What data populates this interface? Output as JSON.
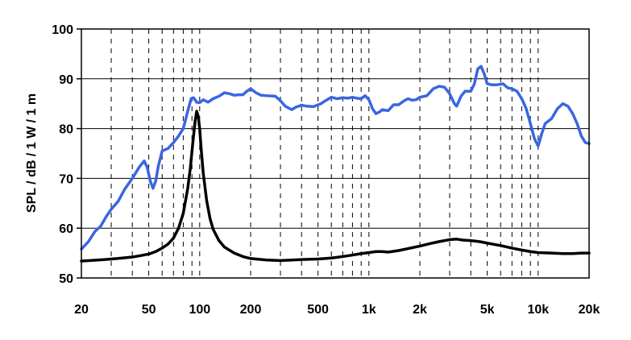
{
  "chart_data": {
    "type": "line",
    "title": "",
    "xlabel": "",
    "ylabel": "SPL / dB / 1 W / 1 m",
    "x_scale": "log",
    "xlim": [
      20,
      20000
    ],
    "ylim": [
      50,
      100
    ],
    "x_ticks": [
      {
        "value": 20,
        "label": "20"
      },
      {
        "value": 50,
        "label": "50"
      },
      {
        "value": 100,
        "label": "100"
      },
      {
        "value": 200,
        "label": "200"
      },
      {
        "value": 500,
        "label": "500"
      },
      {
        "value": 1000,
        "label": "1k"
      },
      {
        "value": 2000,
        "label": "2k"
      },
      {
        "value": 5000,
        "label": "5k"
      },
      {
        "value": 10000,
        "label": "10k"
      },
      {
        "value": 20000,
        "label": "20k"
      }
    ],
    "y_ticks": [
      {
        "value": 50,
        "label": "50"
      },
      {
        "value": 60,
        "label": "60"
      },
      {
        "value": 70,
        "label": "70"
      },
      {
        "value": 80,
        "label": "80"
      },
      {
        "value": 90,
        "label": "90"
      },
      {
        "value": 100,
        "label": "100"
      }
    ],
    "grid": {
      "horizontal": "solid",
      "vertical": "dashed, logarithmic minor divisions"
    },
    "legend": "none",
    "series": [
      {
        "color": "#3a66e0",
        "points": [
          [
            20,
            55.8
          ],
          [
            22,
            57.3
          ],
          [
            24,
            59.3
          ],
          [
            26,
            60.4
          ],
          [
            28,
            62.3
          ],
          [
            30,
            63.8
          ],
          [
            33,
            65.4
          ],
          [
            36,
            67.8
          ],
          [
            40,
            70.0
          ],
          [
            44,
            72.3
          ],
          [
            47,
            73.5
          ],
          [
            49,
            72.2
          ],
          [
            51,
            69.5
          ],
          [
            53,
            68.0
          ],
          [
            55,
            69.5
          ],
          [
            57,
            72.5
          ],
          [
            60,
            75.5
          ],
          [
            65,
            76.0
          ],
          [
            70,
            77.2
          ],
          [
            75,
            78.5
          ],
          [
            80,
            80.0
          ],
          [
            85,
            83.5
          ],
          [
            89,
            86.0
          ],
          [
            92,
            86.2
          ],
          [
            96,
            85.3
          ],
          [
            100,
            85.2
          ],
          [
            105,
            85.8
          ],
          [
            112,
            85.3
          ],
          [
            120,
            86.0
          ],
          [
            130,
            86.5
          ],
          [
            140,
            87.2
          ],
          [
            150,
            87.0
          ],
          [
            160,
            86.7
          ],
          [
            170,
            86.8
          ],
          [
            180,
            86.8
          ],
          [
            190,
            87.5
          ],
          [
            200,
            88.0
          ],
          [
            215,
            87.2
          ],
          [
            230,
            86.7
          ],
          [
            250,
            86.6
          ],
          [
            280,
            86.5
          ],
          [
            300,
            85.6
          ],
          [
            320,
            84.5
          ],
          [
            350,
            83.8
          ],
          [
            370,
            84.3
          ],
          [
            400,
            84.7
          ],
          [
            430,
            84.5
          ],
          [
            470,
            84.4
          ],
          [
            520,
            85.0
          ],
          [
            560,
            85.7
          ],
          [
            600,
            86.3
          ],
          [
            650,
            86.0
          ],
          [
            700,
            86.2
          ],
          [
            750,
            86.1
          ],
          [
            800,
            86.3
          ],
          [
            850,
            86.1
          ],
          [
            900,
            86.0
          ],
          [
            950,
            86.6
          ],
          [
            1000,
            85.8
          ],
          [
            1050,
            84.0
          ],
          [
            1100,
            83.0
          ],
          [
            1150,
            83.3
          ],
          [
            1200,
            83.8
          ],
          [
            1300,
            83.6
          ],
          [
            1400,
            84.8
          ],
          [
            1500,
            84.8
          ],
          [
            1600,
            85.5
          ],
          [
            1700,
            86.0
          ],
          [
            1800,
            85.7
          ],
          [
            1900,
            85.8
          ],
          [
            2000,
            86.3
          ],
          [
            2200,
            86.6
          ],
          [
            2400,
            88.0
          ],
          [
            2600,
            88.5
          ],
          [
            2800,
            88.3
          ],
          [
            3000,
            87.0
          ],
          [
            3200,
            85.0
          ],
          [
            3300,
            84.5
          ],
          [
            3500,
            86.5
          ],
          [
            3700,
            87.5
          ],
          [
            4000,
            87.5
          ],
          [
            4200,
            89.0
          ],
          [
            4400,
            92.0
          ],
          [
            4600,
            92.5
          ],
          [
            4800,
            91.0
          ],
          [
            5000,
            89.0
          ],
          [
            5300,
            88.8
          ],
          [
            5700,
            88.8
          ],
          [
            6200,
            89.0
          ],
          [
            6600,
            88.2
          ],
          [
            7000,
            88.0
          ],
          [
            7500,
            87.5
          ],
          [
            8000,
            86.0
          ],
          [
            8500,
            84.0
          ],
          [
            9000,
            81.0
          ],
          [
            9500,
            78.0
          ],
          [
            10000,
            76.5
          ],
          [
            10500,
            79.0
          ],
          [
            11000,
            81.0
          ],
          [
            12000,
            82.0
          ],
          [
            13000,
            84.0
          ],
          [
            14000,
            85.0
          ],
          [
            15000,
            84.5
          ],
          [
            16000,
            83.0
          ],
          [
            17000,
            81.0
          ],
          [
            18000,
            78.5
          ],
          [
            19000,
            77.2
          ],
          [
            20000,
            77.0
          ]
        ]
      },
      {
        "color": "#000000",
        "points": [
          [
            20,
            53.4
          ],
          [
            25,
            53.6
          ],
          [
            30,
            53.8
          ],
          [
            35,
            54.0
          ],
          [
            40,
            54.2
          ],
          [
            45,
            54.5
          ],
          [
            50,
            54.8
          ],
          [
            55,
            55.3
          ],
          [
            60,
            56.0
          ],
          [
            65,
            56.8
          ],
          [
            70,
            58.0
          ],
          [
            75,
            60.0
          ],
          [
            80,
            63.0
          ],
          [
            85,
            68.0
          ],
          [
            88,
            72.0
          ],
          [
            91,
            77.0
          ],
          [
            94,
            81.5
          ],
          [
            96,
            83.5
          ],
          [
            98,
            82.5
          ],
          [
            100,
            80.0
          ],
          [
            102,
            76.0
          ],
          [
            105,
            71.0
          ],
          [
            110,
            65.5
          ],
          [
            115,
            62.0
          ],
          [
            120,
            59.8
          ],
          [
            130,
            57.5
          ],
          [
            140,
            56.2
          ],
          [
            160,
            55.0
          ],
          [
            180,
            54.3
          ],
          [
            200,
            53.9
          ],
          [
            250,
            53.6
          ],
          [
            300,
            53.5
          ],
          [
            350,
            53.6
          ],
          [
            400,
            53.7
          ],
          [
            500,
            53.8
          ],
          [
            600,
            54.0
          ],
          [
            700,
            54.3
          ],
          [
            800,
            54.6
          ],
          [
            900,
            54.9
          ],
          [
            1000,
            55.1
          ],
          [
            1100,
            55.3
          ],
          [
            1200,
            55.3
          ],
          [
            1300,
            55.2
          ],
          [
            1500,
            55.5
          ],
          [
            1700,
            55.9
          ],
          [
            2000,
            56.4
          ],
          [
            2300,
            56.9
          ],
          [
            2600,
            57.3
          ],
          [
            3000,
            57.7
          ],
          [
            3300,
            57.8
          ],
          [
            3600,
            57.6
          ],
          [
            4000,
            57.5
          ],
          [
            4500,
            57.3
          ],
          [
            5000,
            57.0
          ],
          [
            6000,
            56.5
          ],
          [
            7000,
            56.0
          ],
          [
            8000,
            55.6
          ],
          [
            9000,
            55.3
          ],
          [
            10000,
            55.1
          ],
          [
            12000,
            55.0
          ],
          [
            14000,
            54.9
          ],
          [
            16000,
            54.9
          ],
          [
            18000,
            55.0
          ],
          [
            20000,
            55.0
          ]
        ]
      }
    ]
  }
}
